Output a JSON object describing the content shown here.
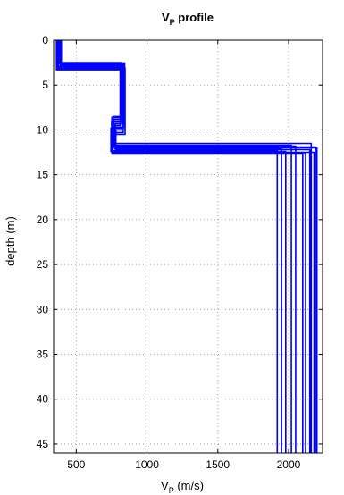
{
  "chart_data": {
    "type": "line",
    "title_main": "V",
    "title_sub": "P",
    "title_rest": " profile",
    "xlabel_main": "V",
    "xlabel_sub": "P",
    "xlabel_rest": " (m/s)",
    "ylabel": "depth (m)",
    "xlim": [
      340,
      2240
    ],
    "ylim": [
      0,
      46
    ],
    "y_reversed": true,
    "xticks": [
      500,
      1000,
      1500,
      2000
    ],
    "xtick_labels": [
      "500",
      "1000",
      "1500",
      "2000"
    ],
    "yticks": [
      0,
      5,
      10,
      15,
      20,
      25,
      30,
      35,
      40,
      45
    ],
    "ytick_labels": [
      "0",
      "5",
      "10",
      "15",
      "20",
      "25",
      "30",
      "35",
      "40",
      "45"
    ],
    "grid": true,
    "line_color": "#0000ff",
    "series": [
      {
        "layers": [
          {
            "v": 385,
            "top": 0,
            "bottom": 2.5
          },
          {
            "v": 820,
            "top": 2.5,
            "bottom": 8.5
          },
          {
            "v": 760,
            "top": 8.5,
            "bottom": 12.0
          },
          {
            "v": 2200,
            "top": 12.0,
            "bottom": 46
          }
        ]
      },
      {
        "layers": [
          {
            "v": 370,
            "top": 0,
            "bottom": 3.0
          },
          {
            "v": 840,
            "top": 3.0,
            "bottom": 9.0
          },
          {
            "v": 750,
            "top": 9.0,
            "bottom": 12.5
          },
          {
            "v": 2180,
            "top": 12.5,
            "bottom": 46
          }
        ]
      },
      {
        "layers": [
          {
            "v": 360,
            "top": 0,
            "bottom": 3.3
          },
          {
            "v": 810,
            "top": 3.3,
            "bottom": 9.5
          },
          {
            "v": 770,
            "top": 9.5,
            "bottom": 11.5
          },
          {
            "v": 2160,
            "top": 11.5,
            "bottom": 46
          }
        ]
      },
      {
        "layers": [
          {
            "v": 395,
            "top": 0,
            "bottom": 2.7
          },
          {
            "v": 830,
            "top": 2.7,
            "bottom": 10.0
          },
          {
            "v": 780,
            "top": 10.0,
            "bottom": 12.2
          },
          {
            "v": 2150,
            "top": 12.2,
            "bottom": 46
          }
        ]
      },
      {
        "layers": [
          {
            "v": 375,
            "top": 0,
            "bottom": 3.1
          },
          {
            "v": 845,
            "top": 3.1,
            "bottom": 10.5
          },
          {
            "v": 755,
            "top": 10.5,
            "bottom": 12.6
          },
          {
            "v": 2100,
            "top": 12.6,
            "bottom": 46
          }
        ]
      },
      {
        "layers": [
          {
            "v": 365,
            "top": 0,
            "bottom": 2.9
          },
          {
            "v": 815,
            "top": 2.9,
            "bottom": 8.8
          },
          {
            "v": 765,
            "top": 8.8,
            "bottom": 11.8
          },
          {
            "v": 2050,
            "top": 11.8,
            "bottom": 46
          }
        ]
      },
      {
        "layers": [
          {
            "v": 390,
            "top": 0,
            "bottom": 3.2
          },
          {
            "v": 825,
            "top": 3.2,
            "bottom": 9.8
          },
          {
            "v": 745,
            "top": 9.8,
            "bottom": 12.4
          },
          {
            "v": 1980,
            "top": 12.4,
            "bottom": 46
          }
        ]
      },
      {
        "layers": [
          {
            "v": 380,
            "top": 0,
            "bottom": 2.6
          },
          {
            "v": 835,
            "top": 2.6,
            "bottom": 9.3
          },
          {
            "v": 775,
            "top": 9.3,
            "bottom": 12.1
          },
          {
            "v": 1950,
            "top": 12.1,
            "bottom": 46
          }
        ]
      },
      {
        "layers": [
          {
            "v": 372,
            "top": 0,
            "bottom": 3.0
          },
          {
            "v": 822,
            "top": 3.0,
            "bottom": 9.1
          },
          {
            "v": 758,
            "top": 9.1,
            "bottom": 12.3
          },
          {
            "v": 1920,
            "top": 12.3,
            "bottom": 46
          }
        ]
      },
      {
        "layers": [
          {
            "v": 388,
            "top": 0,
            "bottom": 2.8
          },
          {
            "v": 832,
            "top": 2.8,
            "bottom": 10.3
          },
          {
            "v": 768,
            "top": 10.3,
            "bottom": 11.7
          },
          {
            "v": 2020,
            "top": 11.7,
            "bottom": 46
          }
        ]
      },
      {
        "layers": [
          {
            "v": 368,
            "top": 0,
            "bottom": 3.25
          },
          {
            "v": 818,
            "top": 3.25,
            "bottom": 8.6
          },
          {
            "v": 752,
            "top": 8.6,
            "bottom": 12.55
          },
          {
            "v": 2120,
            "top": 12.55,
            "bottom": 46
          }
        ]
      },
      {
        "layers": [
          {
            "v": 378,
            "top": 0,
            "bottom": 2.55
          },
          {
            "v": 842,
            "top": 2.55,
            "bottom": 9.7
          },
          {
            "v": 762,
            "top": 9.7,
            "bottom": 11.9
          },
          {
            "v": 2190,
            "top": 11.9,
            "bottom": 46
          }
        ]
      }
    ]
  }
}
